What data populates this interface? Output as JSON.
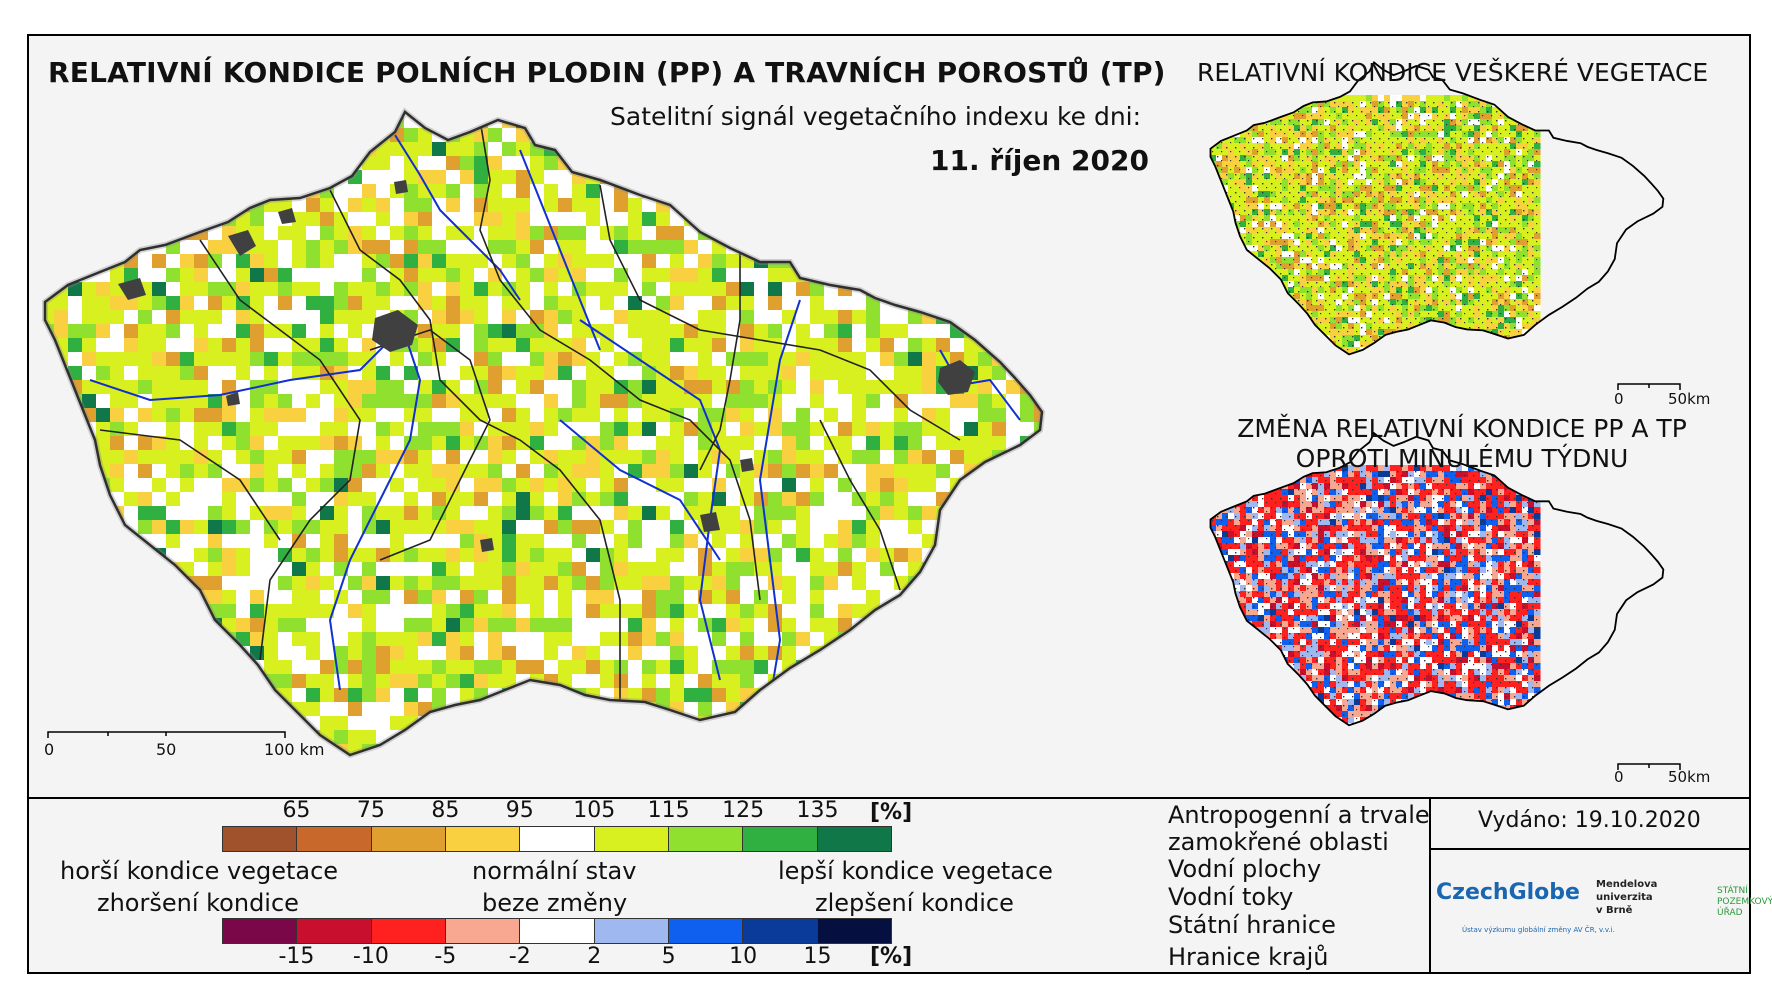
{
  "title_main": "RELATIVNÍ KONDICE POLNÍCH PLODIN (PP) A TRAVNÍCH POROSTŮ (TP)",
  "subtitle": "Satelitní signál vegetačního indexu ke dni:",
  "date": "11. říjen 2020",
  "title_side": "RELATIVNÍ KONDICE VEŠKERÉ VEGETACE",
  "title_change_line1": "ZMĚNA RELATIVNÍ KONDICE PP A TP",
  "title_change_line2": "OPROTI MINULÉMU TÝDNU",
  "scale_main": {
    "l0": "0",
    "l1": "50",
    "l2": "100 km"
  },
  "scale_small_1": {
    "l0": "0",
    "l1": "50km"
  },
  "scale_small_2": {
    "l0": "0",
    "l1": "50km"
  },
  "condition_legend": {
    "ticks": [
      "65",
      "75",
      "85",
      "95",
      "105",
      "115",
      "125",
      "135"
    ],
    "unit": "[%]",
    "colors": [
      "#a0522d",
      "#c8682a",
      "#e0a030",
      "#f8d040",
      "#ffffff",
      "#d8f020",
      "#90e030",
      "#30b040",
      "#107848"
    ]
  },
  "change_legend": {
    "ticks": [
      "-15",
      "-10",
      "-5",
      "-2",
      "2",
      "5",
      "10",
      "15"
    ],
    "unit": "[%]",
    "colors": [
      "#7a0848",
      "#c8102e",
      "#ff2020",
      "#f8a890",
      "#ffffff",
      "#a0b8f0",
      "#1060f0",
      "#0a3a9a",
      "#061040"
    ]
  },
  "arrow_labels": {
    "worse_1": "horší kondice vegetace",
    "worse_2": "zhoršení kondice",
    "normal_1": "normální stav",
    "normal_2": "beze změny",
    "better_1": "lepší kondice vegetace",
    "better_2": "zlepšení kondice"
  },
  "symbol_legend": {
    "anthropogenic_1": "Antropogenní a trvale",
    "anthropogenic_2": "zamokřené oblasti",
    "water_bodies": "Vodní plochy",
    "rivers": "Vodní toky",
    "state_border": "Státní hranice",
    "region_border": "Hranice krajů"
  },
  "issued": "Vydáno: 19.10.2020",
  "logos": {
    "czechglobe": "CzechGlobe",
    "czechglobe_sub": "Ústav výzkumu globální změny AV ČR, v.v.i.",
    "mendel_1": "Mendelova",
    "mendel_2": "univerzita",
    "mendel_3": "v Brně",
    "spu_1": "STÁTNÍ",
    "spu_2": "POZEMKOVÝ",
    "spu_3": "ÚŘAD"
  },
  "colors": {
    "anthropogenic": "#404040",
    "water": "#0000ff",
    "river": "#1030d0",
    "border": "#000000"
  }
}
